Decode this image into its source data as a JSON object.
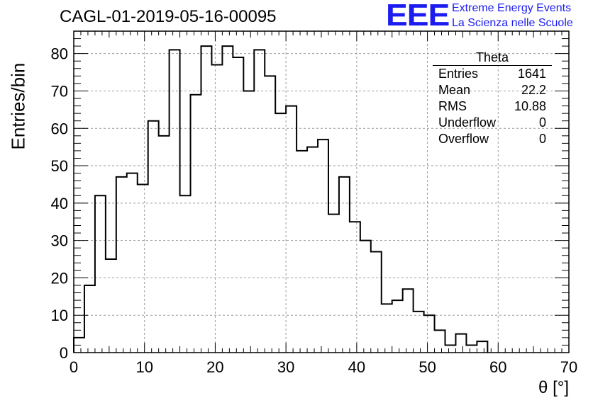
{
  "chart_data": {
    "type": "histogram",
    "title": "CAGL-01-2019-05-16-00095",
    "xlabel": "θ [°]",
    "ylabel": "Entries/bin",
    "xlim": [
      0,
      70
    ],
    "ylim": [
      0,
      86
    ],
    "bin_width": 1.5,
    "x_ticks": [
      0,
      10,
      20,
      30,
      40,
      50,
      60,
      70
    ],
    "y_ticks": [
      0,
      10,
      20,
      30,
      40,
      50,
      60,
      70,
      80
    ],
    "grid": true,
    "values": [
      4,
      18,
      42,
      25,
      47,
      48,
      45,
      62,
      58,
      81,
      42,
      69,
      82,
      77,
      82,
      79,
      70,
      81,
      74,
      64,
      66,
      54,
      55,
      57,
      37,
      47,
      35,
      30,
      27,
      13,
      14,
      17,
      11,
      10,
      6,
      2,
      5,
      2,
      3
    ]
  },
  "stats": {
    "name": "Theta",
    "rows": [
      {
        "label": "Entries",
        "value": "1641"
      },
      {
        "label": "Mean",
        "value": "22.2"
      },
      {
        "label": "RMS",
        "value": "10.88"
      },
      {
        "label": "Underflow",
        "value": "0"
      },
      {
        "label": "Overflow",
        "value": "0"
      }
    ]
  },
  "logo": {
    "mark": "EEE",
    "line1": "Extreme Energy Events",
    "line2": "La Scienza nelle Scuole",
    "color": "#1c1cf0"
  }
}
